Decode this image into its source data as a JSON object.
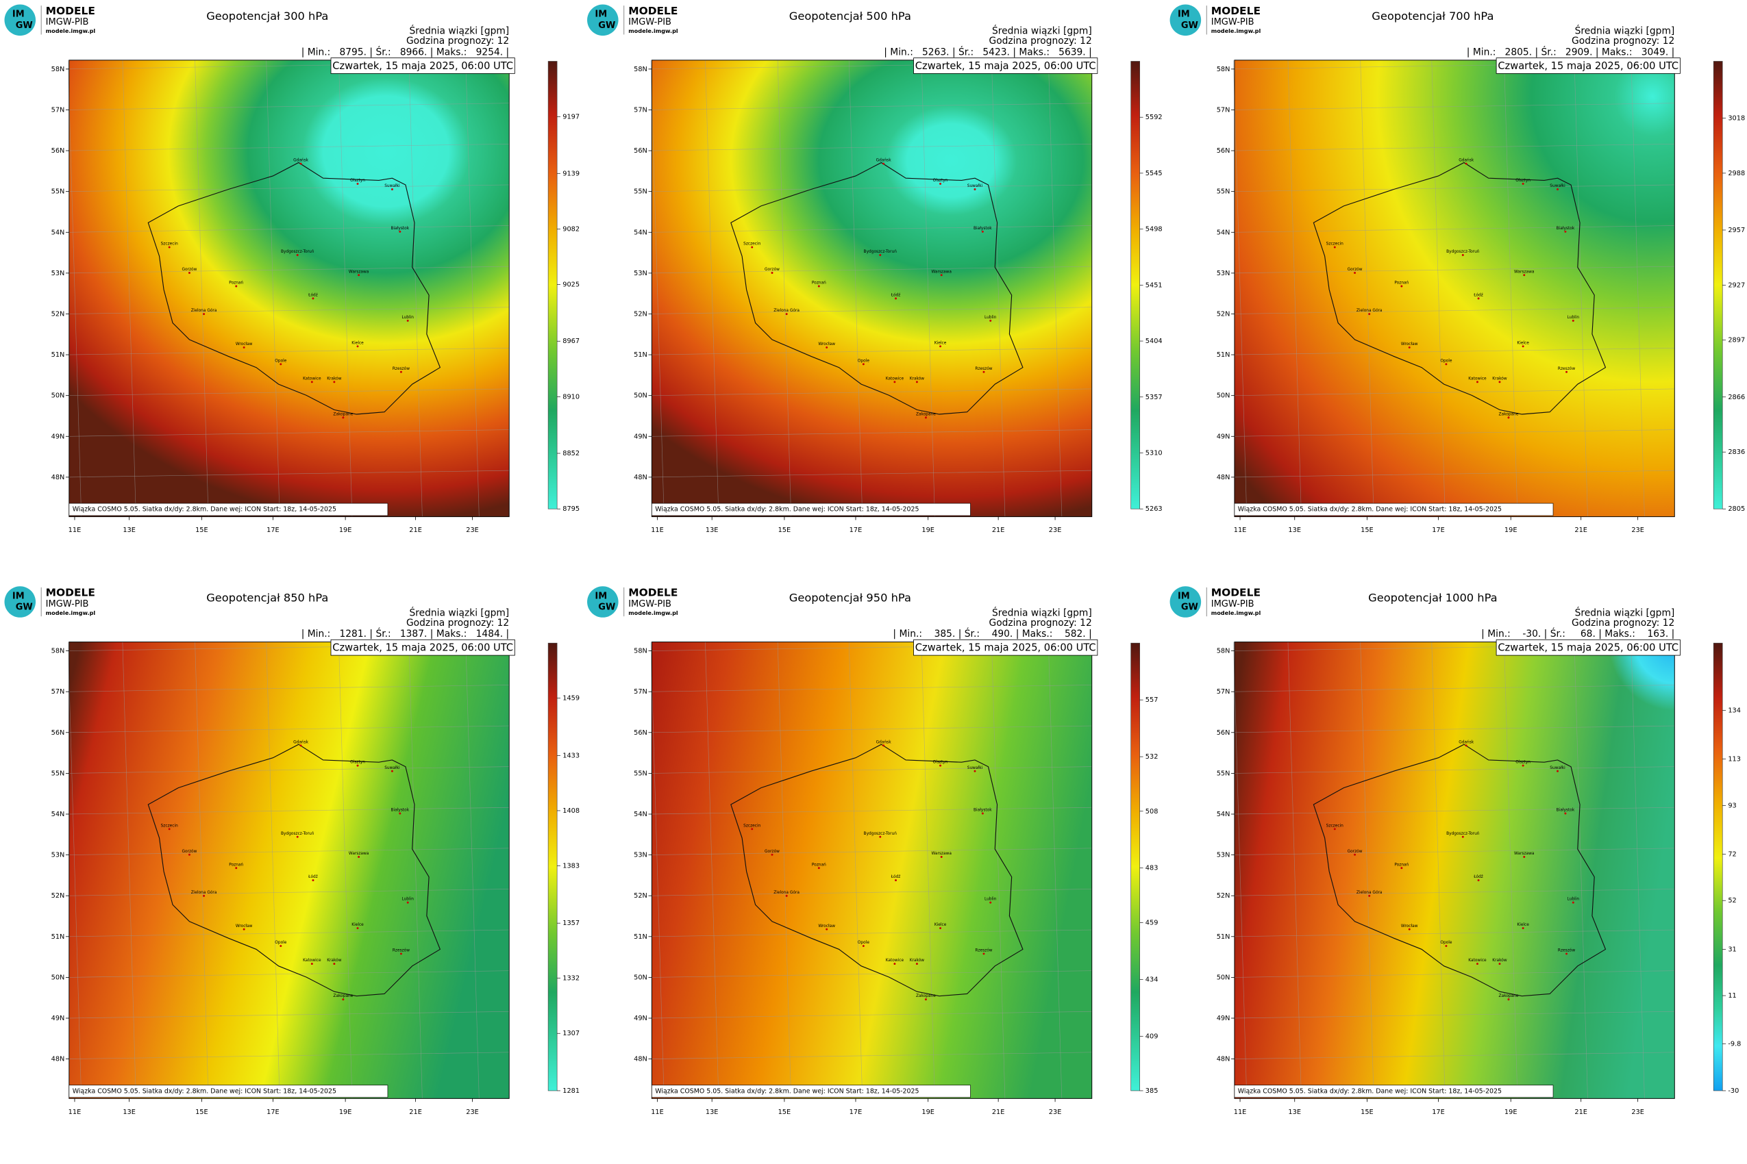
{
  "logo": {
    "name": "MODELE",
    "org": "IMGW-PIB",
    "url": "modele.imgw.pl",
    "icon": [
      "IM",
      "GW"
    ]
  },
  "lat_labels": [
    "58N",
    "57N",
    "56N",
    "55N",
    "54N",
    "53N",
    "52N",
    "51N",
    "50N",
    "49N",
    "48N"
  ],
  "lon_labels": [
    "11E",
    "13E",
    "15E",
    "17E",
    "19E",
    "21E",
    "23E"
  ],
  "cities": [
    "Gdańsk",
    "Olsztyn",
    "Suwałki",
    "Szczecin",
    "Bydgoszcz-Toruń",
    "Białystok",
    "Gorzów",
    "Poznań",
    "Warszawa",
    "Zielona Góra",
    "Łódź",
    "Lublin",
    "Wrocław",
    "Kielce",
    "Opole",
    "Katowice",
    "Kraków",
    "Rzeszów",
    "Zakopane"
  ],
  "panels": [
    {
      "title": "Geopotencjał 300 hPa",
      "subtitle": "Średnia wiązki [gpm]",
      "forecast": "Godzina prognozy: 12",
      "stats": "| Min.:   8795. | Śr.:   8966. | Maks.:   9254. |",
      "date": "Czwartek, 15 maja 2025, 06:00 UTC",
      "footer": "Wiązka COSMO 5.05. Siatka dx/dy: 2.8km. Dane wej: ICON Start: 18z, 14-05-2025",
      "colorbar_lim": [
        8795,
        9254
      ],
      "colorbar_ticks": [
        8795,
        8852,
        8910,
        8967,
        9025,
        9082,
        9139,
        9197
      ]
    },
    {
      "title": "Geopotencjał 500 hPa",
      "subtitle": "Średnia wiązki [gpm]",
      "forecast": "Godzina prognozy: 12",
      "stats": "| Min.:   5263. | Śr.:   5423. | Maks.:   5639. |",
      "date": "Czwartek, 15 maja 2025, 06:00 UTC",
      "footer": "Wiązka COSMO 5.05. Siatka dx/dy: 2.8km. Dane wej: ICON Start: 18z, 14-05-2025",
      "colorbar_lim": [
        5263,
        5639
      ],
      "colorbar_ticks": [
        5263,
        5310,
        5357,
        5404,
        5451,
        5498,
        5545,
        5592
      ]
    },
    {
      "title": "Geopotencjał 700 hPa",
      "subtitle": "Średnia wiązki [gpm]",
      "forecast": "Godzina prognozy: 12",
      "stats": "| Min.:   2805. | Śr.:   2909. | Maks.:   3049. |",
      "date": "Czwartek, 15 maja 2025, 06:00 UTC",
      "footer": "Wiązka COSMO 5.05. Siatka dx/dy: 2.8km. Dane wej: ICON Start: 18z, 14-05-2025",
      "colorbar_lim": [
        2805,
        3049
      ],
      "colorbar_ticks": [
        2805,
        2836,
        2866,
        2897,
        2927,
        2957,
        2988,
        3018
      ]
    },
    {
      "title": "Geopotencjał 850 hPa",
      "subtitle": "Średnia wiązki [gpm]",
      "forecast": "Godzina prognozy: 12",
      "stats": "| Min.:   1281. | Śr.:   1387. | Maks.:   1484. |",
      "date": "Czwartek, 15 maja 2025, 06:00 UTC",
      "footer": "Wiązka COSMO 5.05. Siatka dx/dy: 2.8km. Dane wej: ICON Start: 18z, 14-05-2025",
      "colorbar_lim": [
        1281,
        1484
      ],
      "colorbar_ticks": [
        1281,
        1307,
        1332,
        1357,
        1383,
        1408,
        1433,
        1459
      ]
    },
    {
      "title": "Geopotencjał 950 hPa",
      "subtitle": "Średnia wiązki [gpm]",
      "forecast": "Godzina prognozy: 12",
      "stats": "| Min.:    385. | Śr.:    490. | Maks.:    582. |",
      "date": "Czwartek, 15 maja 2025, 06:00 UTC",
      "footer": "Wiązka COSMO 5.05. Siatka dx/dy: 2.8km. Dane wej: ICON Start: 18z, 14-05-2025",
      "colorbar_lim": [
        385,
        582
      ],
      "colorbar_ticks": [
        385,
        409,
        434,
        459,
        483,
        508,
        532,
        557
      ]
    },
    {
      "title": "Geopotencjał 1000 hPa",
      "subtitle": "Średnia wiązki [gpm]",
      "forecast": "Godzina prognozy: 12",
      "stats": "| Min.:    -30. | Śr.:     68. | Maks.:    163. |",
      "date": "Czwartek, 15 maja 2025, 06:00 UTC",
      "footer": "Wiązka COSMO 5.05. Siatka dx/dy: 2.8km. Dane wej: ICON Start: 18z, 14-05-2025",
      "colorbar_lim": [
        -30,
        163
      ],
      "colorbar_ticks": [
        -30,
        -9.8,
        11,
        31,
        52,
        72,
        93,
        113,
        134
      ]
    }
  ]
}
